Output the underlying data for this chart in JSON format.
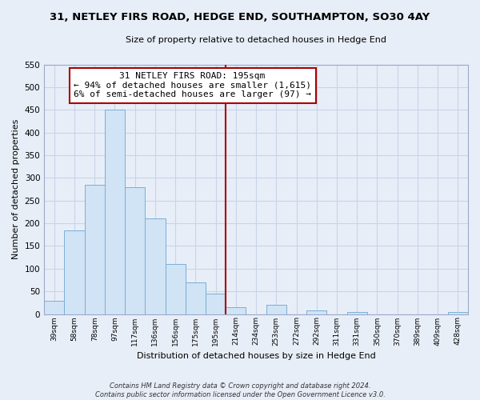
{
  "title": "31, NETLEY FIRS ROAD, HEDGE END, SOUTHAMPTON, SO30 4AY",
  "subtitle": "Size of property relative to detached houses in Hedge End",
  "xlabel": "Distribution of detached houses by size in Hedge End",
  "ylabel": "Number of detached properties",
  "bar_color": "#d0e4f5",
  "bar_edge_color": "#7aaed6",
  "categories": [
    "39sqm",
    "58sqm",
    "78sqm",
    "97sqm",
    "117sqm",
    "136sqm",
    "156sqm",
    "175sqm",
    "195sqm",
    "214sqm",
    "234sqm",
    "253sqm",
    "272sqm",
    "292sqm",
    "311sqm",
    "331sqm",
    "350sqm",
    "370sqm",
    "389sqm",
    "409sqm",
    "428sqm"
  ],
  "values": [
    30,
    185,
    285,
    450,
    280,
    210,
    110,
    70,
    45,
    15,
    0,
    20,
    0,
    8,
    0,
    5,
    0,
    0,
    0,
    0,
    5
  ],
  "vline_index": 8,
  "vline_color": "#aa0000",
  "annotation_line1": "31 NETLEY FIRS ROAD: 195sqm",
  "annotation_line2": "← 94% of detached houses are smaller (1,615)",
  "annotation_line3": "6% of semi-detached houses are larger (97) →",
  "ylim": [
    0,
    550
  ],
  "yticks": [
    0,
    50,
    100,
    150,
    200,
    250,
    300,
    350,
    400,
    450,
    500,
    550
  ],
  "footnote": "Contains HM Land Registry data © Crown copyright and database right 2024.\nContains public sector information licensed under the Open Government Licence v3.0.",
  "background_color": "#e8eef8",
  "plot_bg_color": "#e8eef8",
  "grid_color": "#c8d4e8"
}
